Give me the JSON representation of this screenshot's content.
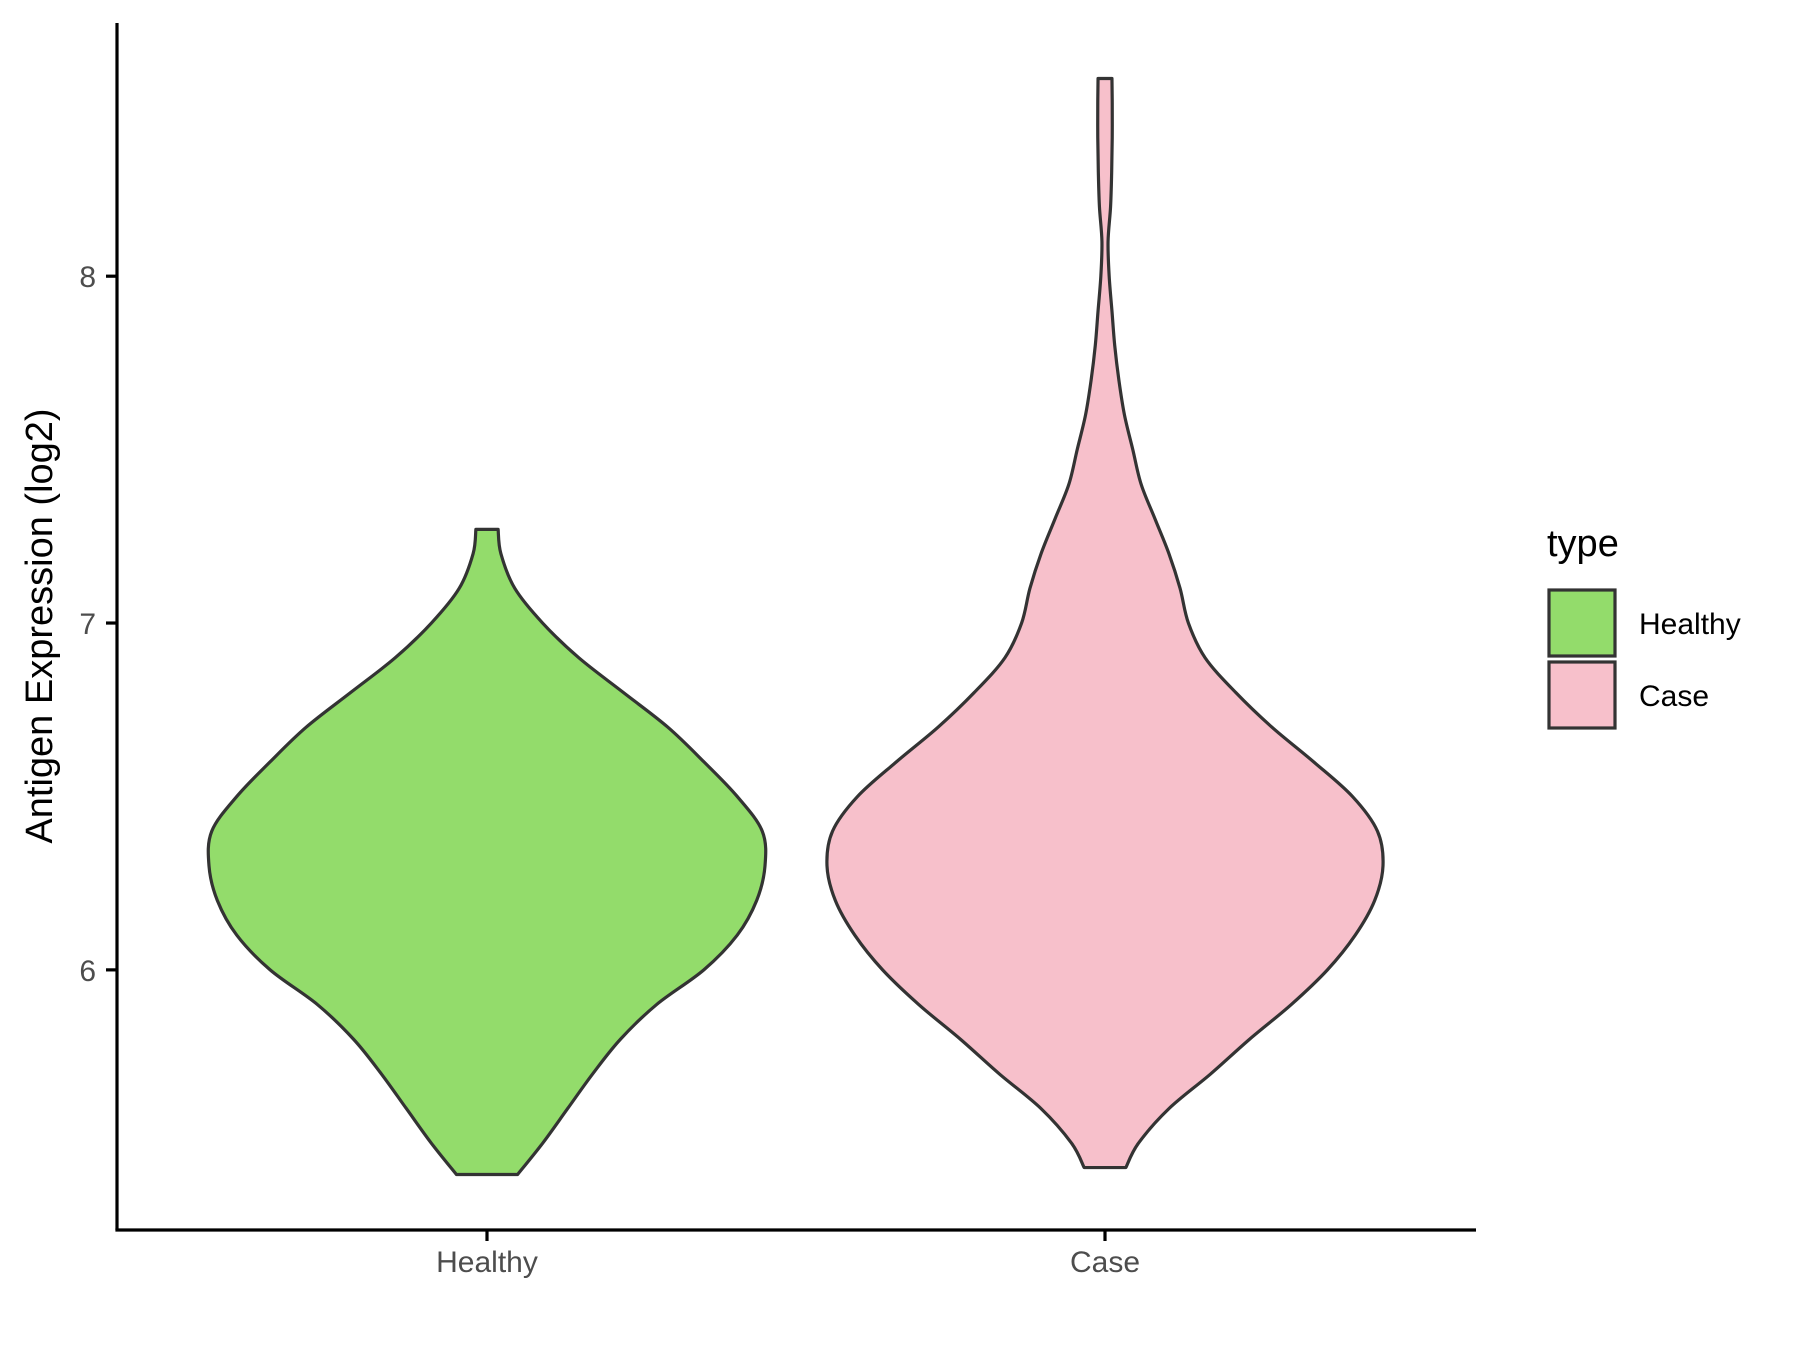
{
  "chart_data": {
    "type": "violin",
    "title": "",
    "xlabel": "",
    "ylabel": "Antigen Expression (log2)",
    "ylim": [
      5.25,
      8.73
    ],
    "yticks": [
      6,
      7,
      8
    ],
    "categories": [
      "Healthy",
      "Case"
    ],
    "grid": false,
    "legend": {
      "title": "type",
      "placement": "right",
      "entries": [
        {
          "label": "Healthy",
          "color": "#93DC6B"
        },
        {
          "label": "Case",
          "color": "#F7C0CB"
        }
      ]
    },
    "series": [
      {
        "name": "Healthy",
        "color": "#93DC6B",
        "range": [
          5.41,
          7.27
        ],
        "profile": [
          [
            5.41,
            0.11
          ],
          [
            5.5,
            0.2
          ],
          [
            5.6,
            0.29
          ],
          [
            5.7,
            0.38
          ],
          [
            5.8,
            0.48
          ],
          [
            5.9,
            0.61
          ],
          [
            6.0,
            0.78
          ],
          [
            6.1,
            0.9
          ],
          [
            6.2,
            0.97
          ],
          [
            6.3,
            1.0
          ],
          [
            6.4,
            0.99
          ],
          [
            6.5,
            0.9
          ],
          [
            6.6,
            0.78
          ],
          [
            6.7,
            0.65
          ],
          [
            6.8,
            0.49
          ],
          [
            6.9,
            0.33
          ],
          [
            7.0,
            0.2
          ],
          [
            7.1,
            0.1
          ],
          [
            7.2,
            0.05
          ],
          [
            7.27,
            0.04
          ]
        ]
      },
      {
        "name": "Case",
        "color": "#F7C0CB",
        "range": [
          5.43,
          8.57
        ],
        "profile": [
          [
            5.43,
            0.075
          ],
          [
            5.5,
            0.12
          ],
          [
            5.6,
            0.23
          ],
          [
            5.7,
            0.38
          ],
          [
            5.8,
            0.52
          ],
          [
            5.9,
            0.67
          ],
          [
            6.0,
            0.8
          ],
          [
            6.1,
            0.9
          ],
          [
            6.2,
            0.97
          ],
          [
            6.3,
            1.0
          ],
          [
            6.4,
            0.98
          ],
          [
            6.5,
            0.89
          ],
          [
            6.6,
            0.75
          ],
          [
            6.7,
            0.6
          ],
          [
            6.8,
            0.47
          ],
          [
            6.9,
            0.36
          ],
          [
            7.0,
            0.3
          ],
          [
            7.1,
            0.27
          ],
          [
            7.2,
            0.23
          ],
          [
            7.3,
            0.18
          ],
          [
            7.4,
            0.13
          ],
          [
            7.5,
            0.1
          ],
          [
            7.6,
            0.07
          ],
          [
            7.7,
            0.05
          ],
          [
            7.8,
            0.035
          ],
          [
            7.9,
            0.025
          ],
          [
            8.0,
            0.015
          ],
          [
            8.1,
            0.011
          ],
          [
            8.2,
            0.02
          ],
          [
            8.3,
            0.024
          ],
          [
            8.4,
            0.026
          ],
          [
            8.5,
            0.026
          ],
          [
            8.57,
            0.025
          ]
        ]
      }
    ]
  }
}
